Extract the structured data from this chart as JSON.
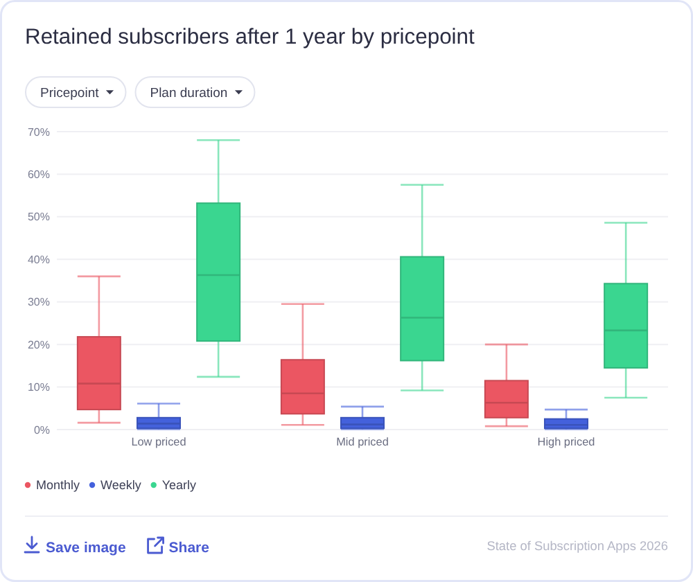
{
  "chart_data": {
    "type": "box",
    "title": "Retained subscribers after 1 year by pricepoint",
    "categories": [
      "Low priced",
      "Mid priced",
      "High priced"
    ],
    "series": [
      {
        "name": "Monthly",
        "color": "#eb5662",
        "boxes": [
          {
            "low": 1.6,
            "q1": 4.7,
            "median": 10.8,
            "q3": 21.8,
            "high": 36.0
          },
          {
            "low": 1.1,
            "q1": 3.7,
            "median": 8.5,
            "q3": 16.4,
            "high": 29.5
          },
          {
            "low": 0.8,
            "q1": 2.8,
            "median": 6.3,
            "q3": 11.5,
            "high": 20.0
          }
        ]
      },
      {
        "name": "Weekly",
        "color": "#4461dc",
        "boxes": [
          {
            "low": 0.1,
            "q1": 0.3,
            "median": 1.4,
            "q3": 2.8,
            "high": 6.1
          },
          {
            "low": 0.1,
            "q1": 0.3,
            "median": 1.2,
            "q3": 2.8,
            "high": 5.4
          },
          {
            "low": 0.1,
            "q1": 0.3,
            "median": 1.1,
            "q3": 2.5,
            "high": 4.7
          }
        ]
      },
      {
        "name": "Yearly",
        "color": "#3ad690",
        "boxes": [
          {
            "low": 12.4,
            "q1": 20.8,
            "median": 36.3,
            "q3": 53.2,
            "high": 68.0
          },
          {
            "low": 9.2,
            "q1": 16.2,
            "median": 26.3,
            "q3": 40.6,
            "high": 57.5
          },
          {
            "low": 7.5,
            "q1": 14.5,
            "median": 23.3,
            "q3": 34.3,
            "high": 48.6
          }
        ]
      }
    ],
    "ylim": [
      0,
      70
    ],
    "yticks": [
      {
        "value": 0,
        "label": "0%"
      },
      {
        "value": 10,
        "label": "10%"
      },
      {
        "value": 20,
        "label": "20%"
      },
      {
        "value": 30,
        "label": "30%"
      },
      {
        "value": 40,
        "label": "40%"
      },
      {
        "value": 50,
        "label": "50%"
      },
      {
        "value": 60,
        "label": "60%"
      },
      {
        "value": 70,
        "label": "70%"
      }
    ],
    "grid": "y",
    "legend": "bottom left",
    "annotations": [
      "Pricepoint",
      "Plan duration",
      "Save image",
      "Share",
      "State of Subscription Apps 2026"
    ]
  }
}
